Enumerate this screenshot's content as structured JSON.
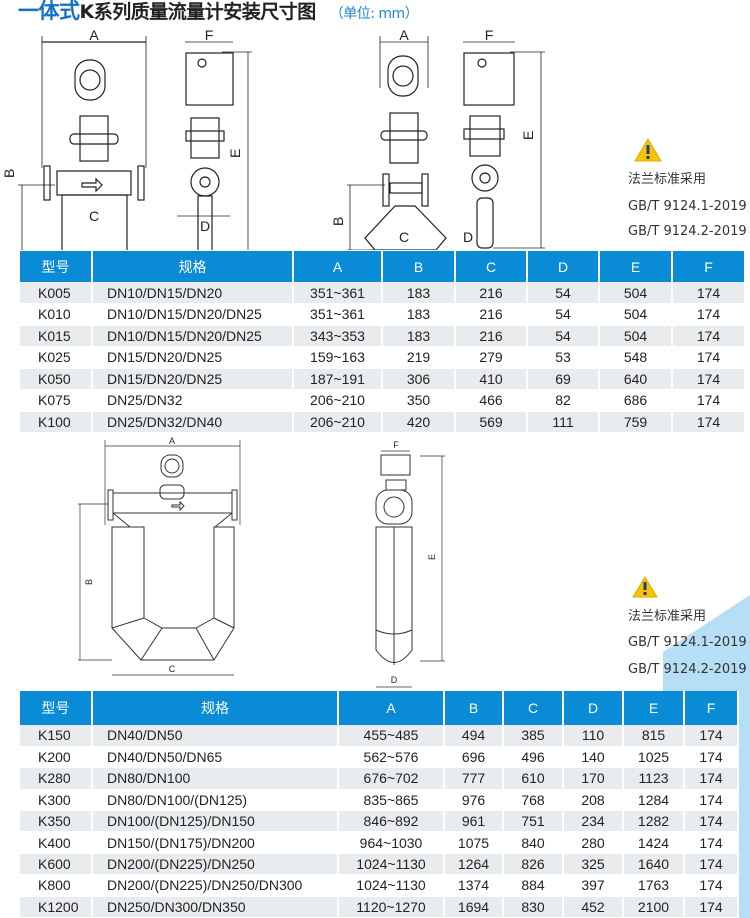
{
  "title": {
    "highlight": "一体式",
    "main": "K系列质量流量计安装尺寸图",
    "unit": "（单位: mm）"
  },
  "dimension_labels": {
    "a": "A",
    "b": "B",
    "c": "C",
    "d": "D",
    "e": "E",
    "f": "F"
  },
  "notes": [
    {
      "icon": "warning-icon",
      "line1": "法兰标准采用",
      "line2": "GB/T 9124.1-2019",
      "line3": "GB/T 9124.2-2019"
    },
    {
      "icon": "warning-icon",
      "line1": "法兰标准采用",
      "line2": "GB/T 9124.1-2019",
      "line3": "GB/T 9124.2-2019"
    }
  ],
  "colors": {
    "header": "#0a8bd6",
    "title_accent": "#1570c4",
    "row_alt": "#e9ecef",
    "decor": "#b6def5"
  },
  "table1": {
    "headers": [
      "型号",
      "规格",
      "A",
      "B",
      "C",
      "D",
      "E",
      "F"
    ],
    "rows": [
      [
        "K005",
        "DN10/DN15/DN20",
        "351~361",
        "183",
        "216",
        "54",
        "504",
        "174"
      ],
      [
        "K010",
        "DN10/DN15/DN20/DN25",
        "351~361",
        "183",
        "216",
        "54",
        "504",
        "174"
      ],
      [
        "K015",
        "DN10/DN15/DN20/DN25",
        "343~353",
        "183",
        "216",
        "54",
        "504",
        "174"
      ],
      [
        "K025",
        "DN15/DN20/DN25",
        "159~163",
        "219",
        "279",
        "53",
        "548",
        "174"
      ],
      [
        "K050",
        "DN15/DN20/DN25",
        "187~191",
        "306",
        "410",
        "69",
        "640",
        "174"
      ],
      [
        "K075",
        "DN25/DN32",
        "206~210",
        "350",
        "466",
        "82",
        "686",
        "174"
      ],
      [
        "K100",
        "DN25/DN32/DN40",
        "206~210",
        "420",
        "569",
        "111",
        "759",
        "174"
      ]
    ]
  },
  "table2": {
    "headers": [
      "型号",
      "规格",
      "A",
      "B",
      "C",
      "D",
      "E",
      "F"
    ],
    "rows": [
      [
        "K150",
        "DN40/DN50",
        "455~485",
        "494",
        "385",
        "110",
        "815",
        "174"
      ],
      [
        "K200",
        "DN40/DN50/DN65",
        "562~576",
        "696",
        "496",
        "140",
        "1025",
        "174"
      ],
      [
        "K280",
        "DN80/DN100",
        "676~702",
        "777",
        "610",
        "170",
        "1123",
        "174"
      ],
      [
        "K300",
        "DN80/DN100/(DN125)",
        "835~865",
        "976",
        "768",
        "208",
        "1284",
        "174"
      ],
      [
        "K350",
        "DN100/(DN125)/DN150",
        "846~892",
        "961",
        "751",
        "234",
        "1282",
        "174"
      ],
      [
        "K400",
        "DN150/(DN175)/DN200",
        "964~1030",
        "1075",
        "840",
        "280",
        "1424",
        "174"
      ],
      [
        "K600",
        "DN200/(DN225)/DN250",
        "1024~1130",
        "1264",
        "826",
        "325",
        "1640",
        "174"
      ],
      [
        "K800",
        "DN200/(DN225)/DN250/DN300",
        "1024~1130",
        "1374",
        "884",
        "397",
        "1763",
        "174"
      ],
      [
        "K1200",
        "DN250/DN300/DN350",
        "1120~1270",
        "1694",
        "830",
        "452",
        "2100",
        "174"
      ]
    ]
  }
}
